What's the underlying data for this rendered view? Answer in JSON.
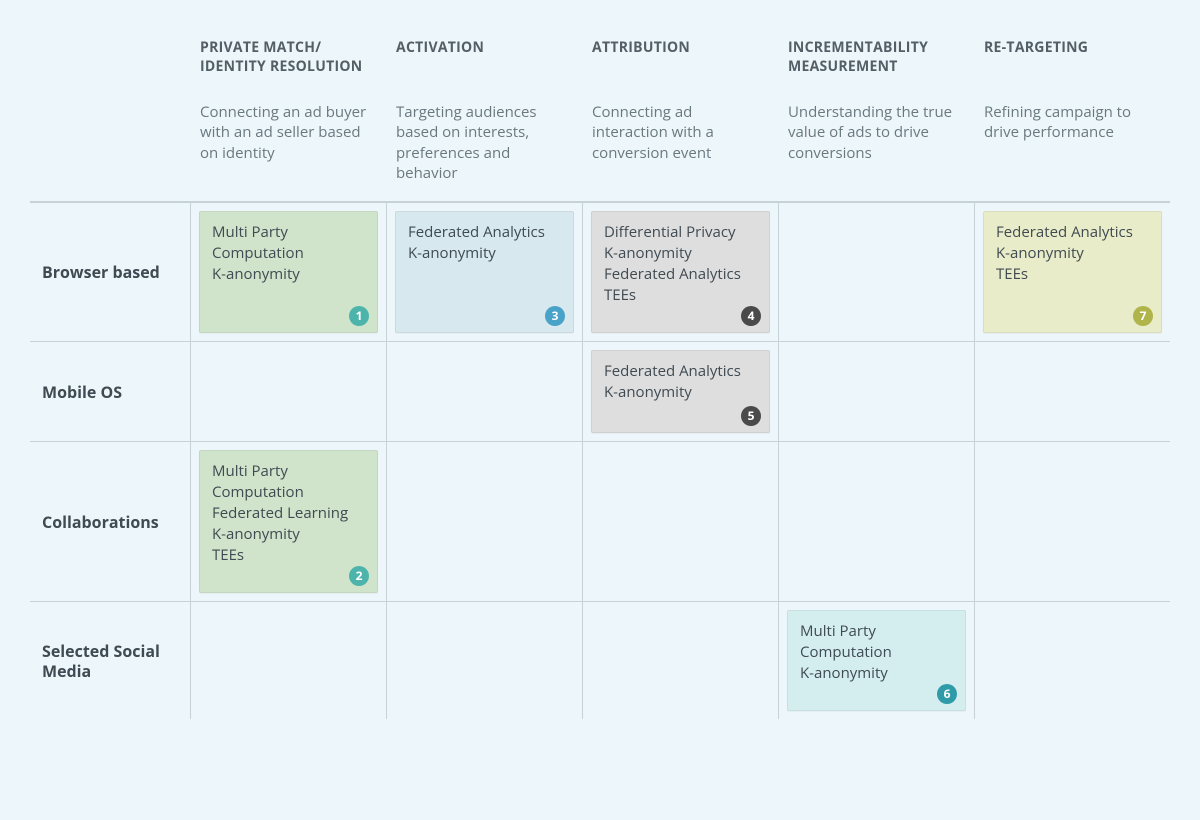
{
  "styling": {
    "page_background": "#edf6fa",
    "text_color": "#3f4a52",
    "subtext_color": "#6a7880",
    "border_color": "#c7d2d8",
    "header_fontsize": 14,
    "subheader_fontsize": 15,
    "rowhead_fontsize": 16,
    "card_fontsize": 15
  },
  "columns": [
    {
      "title": "PRIVATE MATCH/ IDENTITY RESOLUTION",
      "subtitle": "Connecting an ad buyer with an ad seller based on identity"
    },
    {
      "title": "ACTIVATION",
      "subtitle": "Targeting audiences based on interests, preferences and behavior"
    },
    {
      "title": "ATTRIBUTION",
      "subtitle": "Connecting ad interaction with a conversion event"
    },
    {
      "title": "INCREMENTABILITY MEASUREMENT",
      "subtitle": "Understanding the true value of ads to drive conversions"
    },
    {
      "title": "RE-TARGETING",
      "subtitle": "Refining campaign to drive performance"
    }
  ],
  "rows": [
    {
      "label": "Browser based"
    },
    {
      "label": "Mobile OS"
    },
    {
      "label": "Collaborations"
    },
    {
      "label": "Selected Social Media"
    }
  ],
  "cells": {
    "r0c0": {
      "lines": [
        "Multi Party Computation",
        "K-anonymity"
      ],
      "fill": "#d0e4cb",
      "badge_num": "1",
      "badge_color": "#4db4ac"
    },
    "r0c1": {
      "lines": [
        "Federated Analytics",
        "K-anonymity"
      ],
      "fill": "#d7e8ef",
      "badge_num": "3",
      "badge_color": "#49a3c8"
    },
    "r0c2": {
      "lines": [
        "Differential Privacy",
        "K-anonymity",
        "Federated Analytics",
        "TEEs"
      ],
      "fill": "#dedede",
      "badge_num": "4",
      "badge_color": "#4a4a4a"
    },
    "r0c4": {
      "lines": [
        "Federated Analytics",
        "K-anonymity",
        "TEEs"
      ],
      "fill": "#e9ecc8",
      "badge_num": "7",
      "badge_color": "#b0b44a"
    },
    "r1c2": {
      "lines": [
        "Federated Analytics",
        "K-anonymity"
      ],
      "fill": "#dedede",
      "badge_num": "5",
      "badge_color": "#4a4a4a"
    },
    "r2c0": {
      "lines": [
        "Multi Party Computation",
        "Federated Learning",
        "K-anonymity",
        "TEEs"
      ],
      "fill": "#d0e4cb",
      "badge_num": "2",
      "badge_color": "#4db4ac"
    },
    "r3c3": {
      "lines": [
        "Multi Party Computation",
        "K-anonymity"
      ],
      "fill": "#d4eef0",
      "badge_num": "6",
      "badge_color": "#2f9ba8"
    }
  }
}
